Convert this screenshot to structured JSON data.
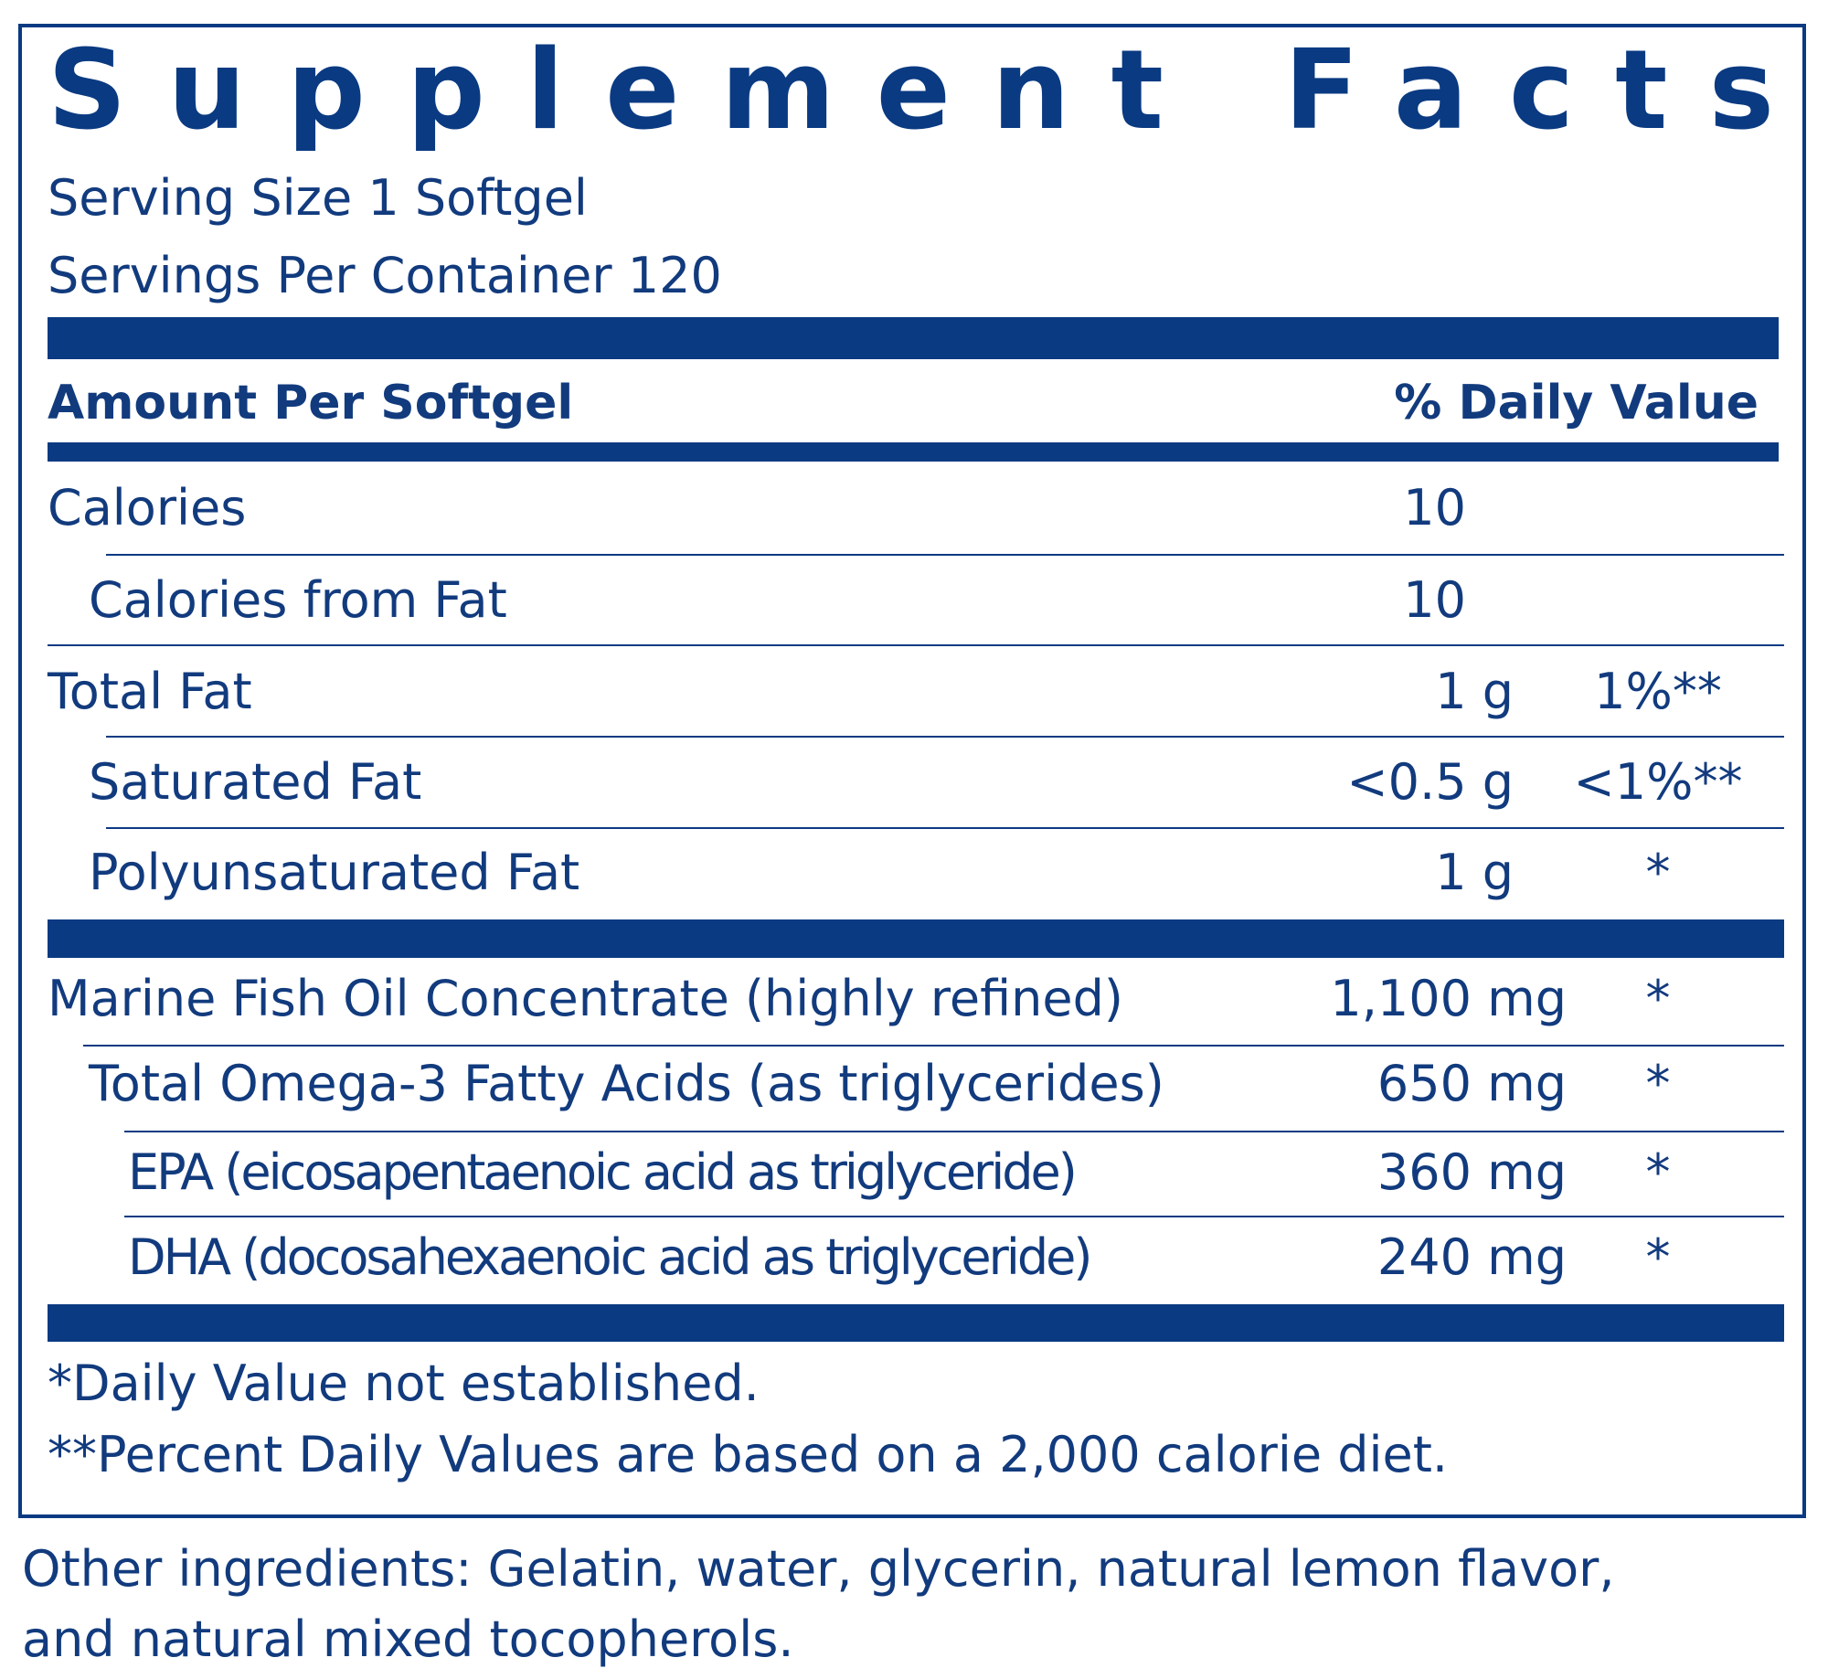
{
  "title": "Supplement Facts",
  "serving_size": "Serving Size 1 Softgel",
  "servings_per_container": "Servings Per Container 120",
  "header": {
    "amount": "Amount Per Softgel",
    "daily_value": "% Daily Value"
  },
  "rows": [
    {
      "label": "Calories",
      "amount": "10"
    },
    {
      "label": "Calories from Fat",
      "amount": "10"
    },
    {
      "label": "Total Fat",
      "amount": "1 g",
      "dv": "1%**"
    },
    {
      "label": "Saturated Fat",
      "amount": "<0.5 g",
      "dv": "<1%**"
    },
    {
      "label": "Polyunsaturated Fat",
      "amount": "1 g",
      "dv": "*"
    },
    {
      "label": "Marine Fish Oil Concentrate (highly refined)",
      "amount": "1,100 mg",
      "dv": "*"
    },
    {
      "label": "Total Omega-3 Fatty Acids (as triglycerides)",
      "amount": "650 mg",
      "dv": "*"
    },
    {
      "label": "EPA (eicosapentaenoic acid as triglyceride)",
      "amount": "360 mg",
      "dv": "*"
    },
    {
      "label": "DHA (docosahexaenoic acid as triglyceride)",
      "amount": "240 mg",
      "dv": "*"
    }
  ],
  "footnotes": [
    "*Daily Value not established.",
    "**Percent Daily Values are based on a 2,000 calorie diet."
  ],
  "other_ingredients": [
    "Other ingredients: Gelatin, water, glycerin, natural lemon flavor,",
    "and natural mixed tocopherols."
  ]
}
